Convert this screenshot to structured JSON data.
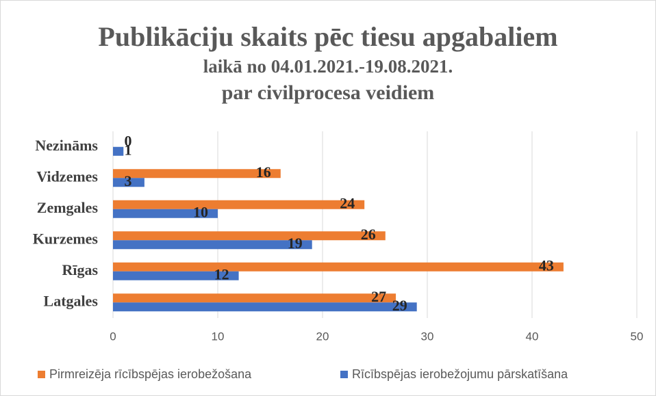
{
  "chart_data": {
    "type": "hbar",
    "title": "Publikāciju skaits pēc tiesu apgabaliem",
    "subtitle": [
      "laikā no 04.01.2021.-19.08.2021.",
      "par civilprocesa veidiem"
    ],
    "categories": [
      "Nezināms",
      "Vidzemes",
      "Zemgales",
      "Kurzemes",
      "Rīgas",
      "Latgales"
    ],
    "series": [
      {
        "name": "Pirmreizēja rīcībspējas ierobežošana",
        "color": "#ed7d31",
        "values": [
          0,
          16,
          24,
          26,
          43,
          27
        ]
      },
      {
        "name": "Rīcībspējas ierobežojumu pārskatīšana",
        "color": "#4472c4",
        "values": [
          1,
          3,
          10,
          19,
          12,
          29
        ]
      }
    ],
    "xlim": [
      0,
      50
    ],
    "xticks": [
      0,
      10,
      20,
      30,
      40,
      50
    ],
    "grid": true,
    "legend": "bottom"
  }
}
